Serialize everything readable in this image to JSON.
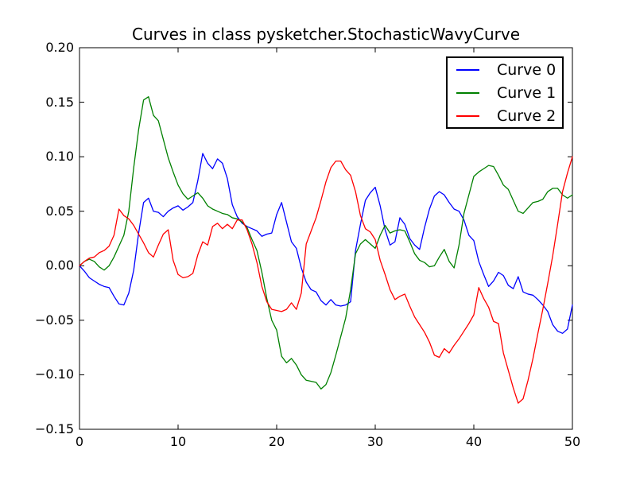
{
  "chart_data": {
    "type": "line",
    "title": "Curves in class pysketcher.StochasticWavyCurve",
    "xlabel": "",
    "ylabel": "",
    "xlim": [
      0,
      50
    ],
    "ylim": [
      -0.15,
      0.2
    ],
    "grid": false,
    "legend_position": "upper right",
    "x_ticks": [
      0,
      10,
      20,
      30,
      40,
      50
    ],
    "x_tick_labels": [
      "0",
      "10",
      "20",
      "30",
      "40",
      "50"
    ],
    "y_ticks": [
      0.2,
      0.15,
      0.1,
      0.05,
      0.0,
      -0.05,
      -0.1,
      -0.15
    ],
    "y_tick_labels": [
      "0.20",
      "0.15",
      "0.10",
      "0.05",
      "0.00",
      "−0.05",
      "−0.10",
      "−0.15"
    ],
    "x": [
      0,
      0.5,
      1,
      1.5,
      2,
      2.5,
      3,
      3.5,
      4,
      4.5,
      5,
      5.5,
      6,
      6.5,
      7,
      7.5,
      8,
      8.5,
      9,
      9.5,
      10,
      10.5,
      11,
      11.5,
      12,
      12.5,
      13,
      13.5,
      14,
      14.5,
      15,
      15.5,
      16,
      16.5,
      17,
      17.5,
      18,
      18.5,
      19,
      19.5,
      20,
      20.5,
      21,
      21.5,
      22,
      22.5,
      23,
      23.5,
      24,
      24.5,
      25,
      25.5,
      26,
      26.5,
      27,
      27.5,
      28,
      28.5,
      29,
      29.5,
      30,
      30.5,
      31,
      31.5,
      32,
      32.5,
      33,
      33.5,
      34,
      34.5,
      35,
      35.5,
      36,
      36.5,
      37,
      37.5,
      38,
      38.5,
      39,
      39.5,
      40,
      40.5,
      41,
      41.5,
      42,
      42.5,
      43,
      43.5,
      44,
      44.5,
      45,
      45.5,
      46,
      46.5,
      47,
      47.5,
      48,
      48.5,
      49,
      49.5,
      50
    ],
    "series": [
      {
        "name": "Curve 0",
        "color": "#0000ff",
        "values": [
          0.0,
          -0.005,
          -0.011,
          -0.014,
          -0.017,
          -0.019,
          -0.02,
          -0.028,
          -0.035,
          -0.036,
          -0.025,
          -0.004,
          0.03,
          0.058,
          0.062,
          0.05,
          0.049,
          0.045,
          0.05,
          0.053,
          0.055,
          0.051,
          0.054,
          0.058,
          0.078,
          0.103,
          0.094,
          0.089,
          0.098,
          0.094,
          0.08,
          0.056,
          0.045,
          0.039,
          0.036,
          0.034,
          0.032,
          0.027,
          0.029,
          0.03,
          0.047,
          0.058,
          0.04,
          0.022,
          0.016,
          -0.002,
          -0.015,
          -0.022,
          -0.024,
          -0.032,
          -0.036,
          -0.031,
          -0.036,
          -0.037,
          -0.036,
          -0.033,
          0.014,
          0.038,
          0.06,
          0.067,
          0.072,
          0.055,
          0.033,
          0.019,
          0.022,
          0.044,
          0.038,
          0.025,
          0.019,
          0.015,
          0.035,
          0.052,
          0.064,
          0.068,
          0.065,
          0.058,
          0.052,
          0.05,
          0.042,
          0.028,
          0.023,
          0.004,
          -0.008,
          -0.019,
          -0.014,
          -0.006,
          -0.009,
          -0.018,
          -0.021,
          -0.01,
          -0.024,
          -0.026,
          -0.027,
          -0.031,
          -0.036,
          -0.042,
          -0.054,
          -0.06,
          -0.062,
          -0.058,
          -0.036
        ]
      },
      {
        "name": "Curve 1",
        "color": "#008000",
        "values": [
          0.0,
          0.004,
          0.006,
          0.004,
          -0.001,
          -0.004,
          0.0,
          0.008,
          0.018,
          0.028,
          0.05,
          0.09,
          0.125,
          0.152,
          0.155,
          0.138,
          0.133,
          0.116,
          0.099,
          0.086,
          0.074,
          0.066,
          0.061,
          0.064,
          0.067,
          0.062,
          0.055,
          0.052,
          0.05,
          0.048,
          0.047,
          0.044,
          0.043,
          0.04,
          0.035,
          0.024,
          0.014,
          -0.006,
          -0.03,
          -0.05,
          -0.059,
          -0.083,
          -0.089,
          -0.085,
          -0.091,
          -0.1,
          -0.105,
          -0.106,
          -0.107,
          -0.113,
          -0.109,
          -0.098,
          -0.082,
          -0.065,
          -0.048,
          -0.022,
          0.011,
          0.02,
          0.024,
          0.02,
          0.016,
          0.028,
          0.037,
          0.03,
          0.032,
          0.033,
          0.032,
          0.022,
          0.011,
          0.005,
          0.003,
          -0.001,
          0.0,
          0.008,
          0.015,
          0.004,
          -0.002,
          0.019,
          0.048,
          0.065,
          0.082,
          0.086,
          0.089,
          0.092,
          0.091,
          0.083,
          0.074,
          0.07,
          0.06,
          0.05,
          0.048,
          0.053,
          0.058,
          0.059,
          0.061,
          0.068,
          0.071,
          0.071,
          0.065,
          0.062,
          0.065
        ]
      },
      {
        "name": "Curve 2",
        "color": "#ff0000",
        "values": [
          0.0,
          0.004,
          0.007,
          0.008,
          0.012,
          0.014,
          0.018,
          0.028,
          0.052,
          0.046,
          0.043,
          0.037,
          0.029,
          0.021,
          0.012,
          0.008,
          0.019,
          0.029,
          0.033,
          0.005,
          -0.008,
          -0.011,
          -0.01,
          -0.007,
          0.01,
          0.022,
          0.019,
          0.036,
          0.039,
          0.034,
          0.038,
          0.034,
          0.042,
          0.042,
          0.033,
          0.02,
          0.003,
          -0.019,
          -0.033,
          -0.04,
          -0.041,
          -0.042,
          -0.04,
          -0.034,
          -0.04,
          -0.025,
          0.02,
          0.032,
          0.044,
          0.06,
          0.077,
          0.09,
          0.096,
          0.096,
          0.088,
          0.083,
          0.068,
          0.046,
          0.034,
          0.031,
          0.024,
          0.005,
          -0.008,
          -0.022,
          -0.031,
          -0.028,
          -0.026,
          -0.037,
          -0.047,
          -0.054,
          -0.061,
          -0.07,
          -0.082,
          -0.084,
          -0.076,
          -0.08,
          -0.073,
          -0.067,
          -0.06,
          -0.053,
          -0.045,
          -0.02,
          -0.03,
          -0.038,
          -0.051,
          -0.053,
          -0.08,
          -0.096,
          -0.112,
          -0.126,
          -0.122,
          -0.105,
          -0.085,
          -0.062,
          -0.04,
          -0.016,
          0.009,
          0.038,
          0.068,
          0.085,
          0.1
        ]
      }
    ]
  }
}
